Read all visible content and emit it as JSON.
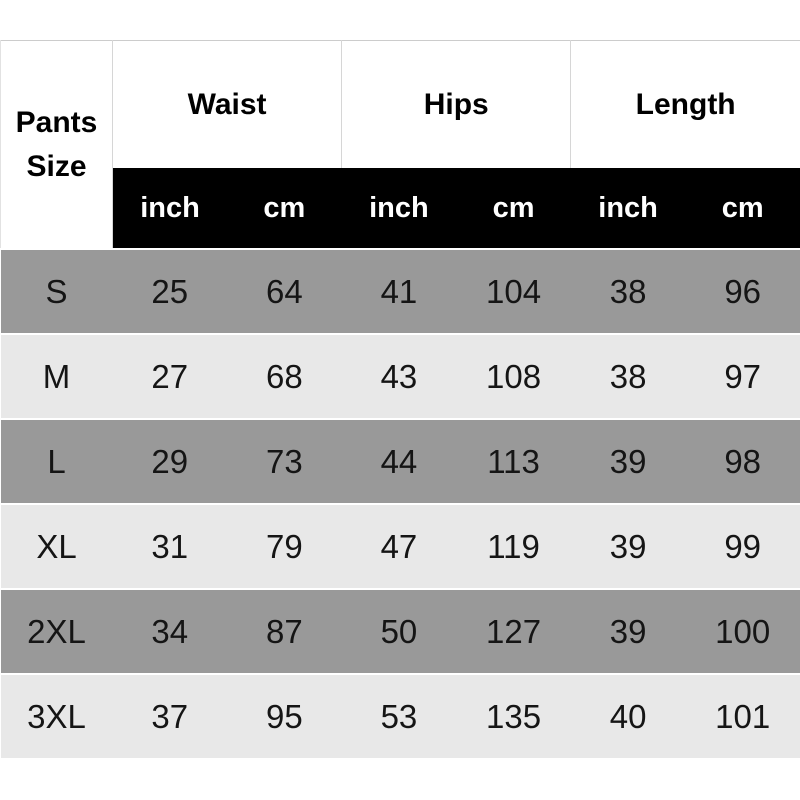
{
  "table": {
    "corner_header": "Pants Size",
    "measurement_groups": [
      {
        "label": "Waist"
      },
      {
        "label": "Hips"
      },
      {
        "label": "Length"
      }
    ],
    "unit_headers": [
      "inch",
      "cm",
      "inch",
      "cm",
      "inch",
      "cm"
    ],
    "rows": [
      {
        "size": "S",
        "values": [
          25,
          64,
          41,
          104,
          38,
          96
        ]
      },
      {
        "size": "M",
        "values": [
          27,
          68,
          43,
          108,
          38,
          97
        ]
      },
      {
        "size": "L",
        "values": [
          29,
          73,
          44,
          113,
          39,
          98
        ]
      },
      {
        "size": "XL",
        "values": [
          31,
          79,
          47,
          119,
          39,
          99
        ]
      },
      {
        "size": "2XL",
        "values": [
          34,
          87,
          50,
          127,
          39,
          100
        ]
      },
      {
        "size": "3XL",
        "values": [
          37,
          95,
          53,
          135,
          40,
          101
        ]
      }
    ],
    "colors": {
      "units_bar_bg": "#000000",
      "units_bar_text": "#ffffff",
      "row_dark_bg": "#999999",
      "row_light_bg": "#e8e8e8",
      "header_text": "#000000",
      "data_text": "#151515",
      "border": "#cccccc",
      "background": "#ffffff"
    }
  },
  "chart_data": {
    "type": "table",
    "column_groups": [
      "Waist",
      "Hips",
      "Length"
    ],
    "columns": [
      "Pants Size",
      "Waist inch",
      "Waist cm",
      "Hips inch",
      "Hips cm",
      "Length inch",
      "Length cm"
    ],
    "rows": [
      [
        "S",
        25,
        64,
        41,
        104,
        38,
        96
      ],
      [
        "M",
        27,
        68,
        43,
        108,
        38,
        97
      ],
      [
        "L",
        29,
        73,
        44,
        113,
        39,
        98
      ],
      [
        "XL",
        31,
        79,
        47,
        119,
        39,
        99
      ],
      [
        "2XL",
        34,
        87,
        50,
        127,
        39,
        100
      ],
      [
        "3XL",
        37,
        95,
        53,
        135,
        40,
        101
      ]
    ],
    "layout_hints": {
      "alternating_row_shading": true,
      "units_bar_black": true,
      "grid": "header-only vertical separators, white gaps between body rows"
    }
  }
}
